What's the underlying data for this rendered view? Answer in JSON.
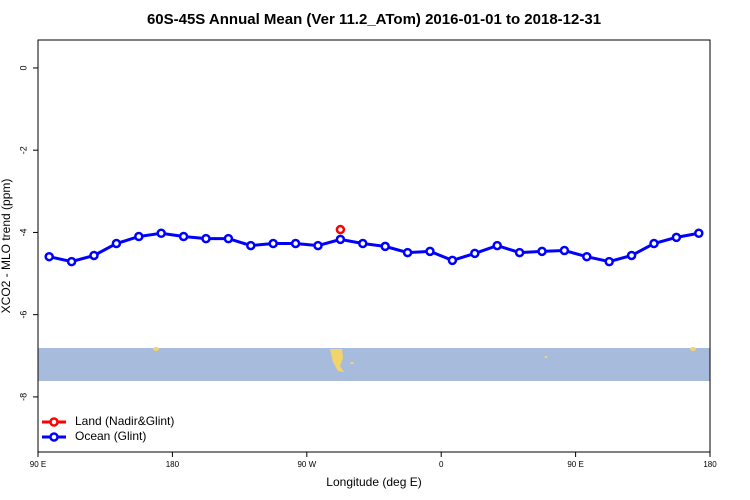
{
  "chart_data": {
    "type": "line",
    "title": "60S-45S Annual Mean (Ver 11.2_ATom)   2016-01-01 to 2018-12-31",
    "x_label": "Longitude (deg E)",
    "y_label": "XCO2 - MLO trend (ppm)",
    "x": [
      97.5,
      112.5,
      127.5,
      142.5,
      157.5,
      172.5,
      187.5,
      202.5,
      217.5,
      232.5,
      247.5,
      262.5,
      277.5,
      292.5,
      307.5,
      322.5,
      337.5,
      352.5,
      367.5,
      382.5,
      397.5,
      412.5,
      427.5,
      442.5,
      457.5,
      472.5,
      487.5,
      502.5,
      517.5,
      532.5
    ],
    "series": [
      {
        "name": "Land (Nadir&Glint)",
        "color": "#ff0000",
        "values": [
          null,
          null,
          null,
          null,
          null,
          null,
          null,
          null,
          null,
          null,
          null,
          null,
          null,
          -3.93,
          null,
          null,
          null,
          null,
          null,
          null,
          null,
          null,
          null,
          null,
          null,
          null,
          null,
          null,
          null,
          null
        ]
      },
      {
        "name": "Ocean (Glint)",
        "color": "#0000ff",
        "values": [
          -4.59,
          -4.71,
          -4.56,
          -4.27,
          -4.1,
          -4.02,
          -4.1,
          -4.15,
          -4.15,
          -4.32,
          -4.27,
          -4.27,
          -4.32,
          -4.17,
          -4.27,
          -4.34,
          -4.49,
          -4.46,
          -4.68,
          -4.51,
          -4.32,
          -4.49,
          -4.46,
          -4.44,
          -4.59,
          -4.71,
          -4.56,
          -4.27,
          -4.12,
          -4.02
        ]
      }
    ],
    "xlim": [
      90,
      540
    ],
    "ylim": [
      -9.34,
      0.68
    ],
    "xticks": [
      {
        "value": 90,
        "label": "90 E"
      },
      180,
      {
        "value": 270,
        "label": "90 W"
      },
      {
        "value": 360,
        "label": "0"
      },
      {
        "value": 450,
        "label": "90 E"
      },
      {
        "value": 540,
        "label": "180"
      }
    ],
    "yticks": [
      0,
      -2,
      -4,
      -6,
      -8
    ],
    "legend": "bottom-left"
  }
}
